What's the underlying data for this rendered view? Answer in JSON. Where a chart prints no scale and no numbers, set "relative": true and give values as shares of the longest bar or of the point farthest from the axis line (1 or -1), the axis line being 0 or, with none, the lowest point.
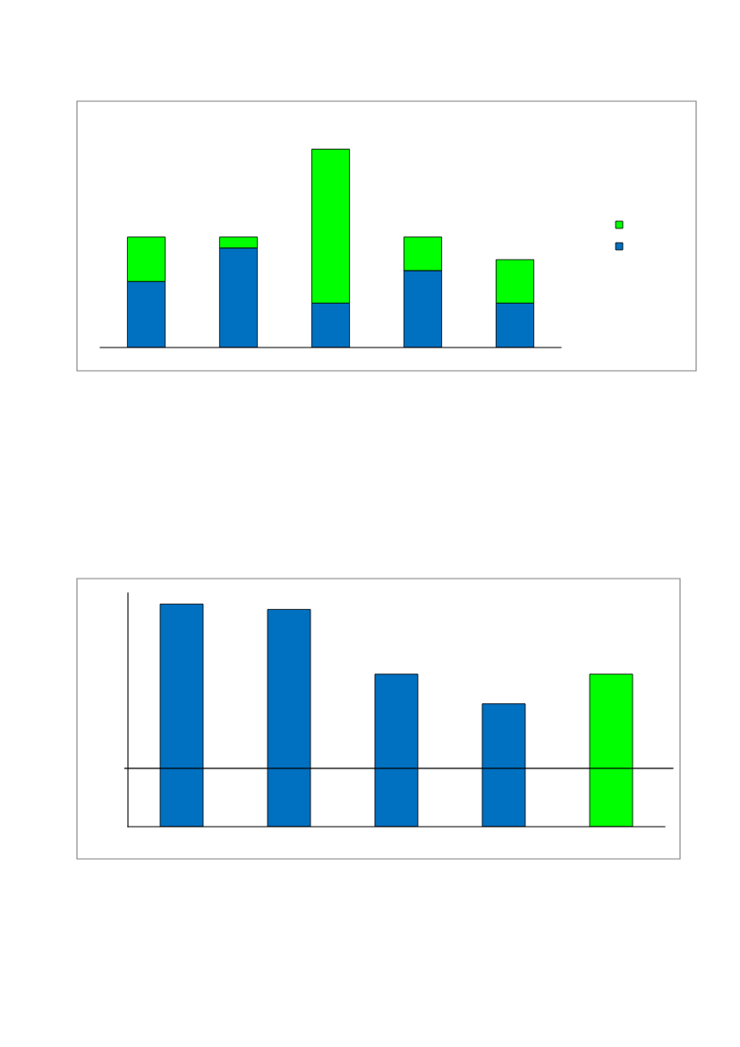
{
  "chart_data": [
    {
      "type": "bar",
      "stacked": true,
      "relative": true,
      "categories": [
        null,
        null,
        null,
        null,
        null
      ],
      "grid": false,
      "series": [
        {
          "color": "#0070c0",
          "values": [
            0.333,
            0.502,
            0.224,
            0.388,
            0.224
          ]
        },
        {
          "color": "#00ff00",
          "values": [
            0.224,
            0.055,
            0.776,
            0.169,
            0.219
          ]
        }
      ]
    },
    {
      "type": "bar",
      "relative": true,
      "categories": [
        null,
        null,
        null,
        null,
        null
      ],
      "grid": false,
      "values": [
        1,
        0.976,
        0.685,
        0.552,
        0.685
      ],
      "colors": [
        "#0070c0",
        "#0070c0",
        "#0070c0",
        "#0070c0",
        "#00ff00"
      ],
      "ref_lines": [
        {
          "axis": "y",
          "value": 0.262,
          "color": "#000000"
        }
      ]
    }
  ]
}
